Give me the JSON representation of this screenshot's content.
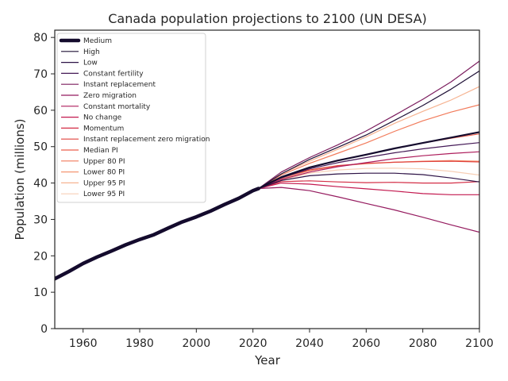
{
  "chart_data": {
    "type": "line",
    "title": "Canada population projections to 2100 (UN DESA)",
    "xlabel": "Year",
    "ylabel": "Population (millions)",
    "xlim": [
      1950,
      2100
    ],
    "ylim": [
      0,
      82
    ],
    "xticks": [
      1960,
      1980,
      2000,
      2020,
      2040,
      2060,
      2080,
      2100
    ],
    "yticks": [
      0,
      10,
      20,
      30,
      40,
      50,
      60,
      70,
      80
    ],
    "grid": false,
    "legend_position": "top-left",
    "historical": {
      "name": "Medium",
      "x": [
        1950,
        1955,
        1960,
        1965,
        1970,
        1975,
        1980,
        1985,
        1990,
        1995,
        2000,
        2005,
        2010,
        2015,
        2020,
        2022
      ],
      "y": [
        13.7,
        15.7,
        17.9,
        19.7,
        21.3,
        23.0,
        24.5,
        25.8,
        27.6,
        29.3,
        30.7,
        32.3,
        34.1,
        35.8,
        37.9,
        38.5
      ]
    },
    "series": [
      {
        "name": "Medium",
        "color": "#140b2d",
        "width": 2.2,
        "x": [
          2022,
          2030,
          2040,
          2050,
          2060,
          2070,
          2080,
          2090,
          2100
        ],
        "y": [
          38.5,
          41.6,
          44.3,
          46.2,
          47.8,
          49.5,
          51.0,
          52.5,
          54.0
        ]
      },
      {
        "name": "High",
        "color": "#1f1137",
        "width": 1.2,
        "x": [
          2022,
          2030,
          2040,
          2050,
          2060,
          2070,
          2080,
          2090,
          2100
        ],
        "y": [
          38.5,
          42.5,
          46.5,
          49.8,
          53.2,
          57.2,
          61.3,
          65.8,
          70.8
        ]
      },
      {
        "name": "Low",
        "color": "#2e1447",
        "width": 1.2,
        "x": [
          2022,
          2030,
          2040,
          2050,
          2060,
          2070,
          2080,
          2090,
          2100
        ],
        "y": [
          38.5,
          40.7,
          42.0,
          42.5,
          42.7,
          42.7,
          42.3,
          41.4,
          40.3
        ]
      },
      {
        "name": "Constant fertility",
        "color": "#451a57",
        "width": 1.2,
        "x": [
          2022,
          2030,
          2040,
          2050,
          2060,
          2070,
          2080,
          2090,
          2100
        ],
        "y": [
          38.5,
          41.4,
          43.9,
          45.6,
          47.0,
          48.3,
          49.4,
          50.3,
          51.1
        ]
      },
      {
        "name": "Instant replacement",
        "color": "#7b1d5e",
        "width": 1.2,
        "x": [
          2022,
          2030,
          2040,
          2050,
          2060,
          2070,
          2080,
          2090,
          2100
        ],
        "y": [
          38.5,
          43.0,
          47.0,
          50.5,
          54.3,
          58.6,
          63.0,
          67.8,
          73.5
        ]
      },
      {
        "name": "Zero migration",
        "color": "#951b5f",
        "width": 1.2,
        "x": [
          2022,
          2030,
          2040,
          2050,
          2060,
          2070,
          2080,
          2090,
          2100
        ],
        "y": [
          38.5,
          38.8,
          37.9,
          36.2,
          34.4,
          32.6,
          30.6,
          28.5,
          26.5
        ]
      },
      {
        "name": "Constant mortality",
        "color": "#ad1c5b",
        "width": 1.2,
        "x": [
          2022,
          2030,
          2040,
          2050,
          2060,
          2070,
          2080,
          2090,
          2100
        ],
        "y": [
          38.5,
          41.0,
          43.0,
          44.5,
          45.6,
          46.7,
          47.5,
          48.1,
          48.6
        ]
      },
      {
        "name": "No change",
        "color": "#c3194f",
        "width": 1.2,
        "x": [
          2022,
          2030,
          2040,
          2050,
          2060,
          2070,
          2080,
          2090,
          2100
        ],
        "y": [
          38.5,
          40.0,
          39.7,
          39.0,
          38.4,
          37.8,
          37.1,
          36.8,
          36.8
        ]
      },
      {
        "name": "Momentum",
        "color": "#d42e46",
        "width": 1.2,
        "x": [
          2022,
          2030,
          2040,
          2050,
          2060,
          2070,
          2080,
          2090,
          2100
        ],
        "y": [
          38.5,
          40.4,
          40.6,
          40.3,
          40.1,
          40.2,
          40.0,
          40.0,
          40.4
        ]
      },
      {
        "name": "Instant replacement zero migration",
        "color": "#e0433e",
        "width": 1.2,
        "x": [
          2022,
          2030,
          2040,
          2050,
          2060,
          2070,
          2080,
          2090,
          2100
        ],
        "y": [
          38.5,
          41.5,
          43.6,
          44.8,
          45.4,
          45.7,
          45.9,
          46.0,
          45.8
        ]
      },
      {
        "name": "Median PI",
        "color": "#ec5f4c",
        "width": 1.2,
        "x": [
          2022,
          2030,
          2040,
          2050,
          2060,
          2070,
          2080,
          2090,
          2100
        ],
        "y": [
          38.5,
          41.6,
          44.3,
          46.2,
          47.8,
          49.5,
          51.0,
          52.3,
          53.5
        ]
      },
      {
        "name": "Upper 80 PI",
        "color": "#f27b5b",
        "width": 1.2,
        "x": [
          2022,
          2030,
          2040,
          2050,
          2060,
          2070,
          2080,
          2090,
          2100
        ],
        "y": [
          38.5,
          42.2,
          45.4,
          48.2,
          51.0,
          54.2,
          57.1,
          59.5,
          61.5
        ]
      },
      {
        "name": "Lower 80 PI",
        "color": "#f59773",
        "width": 1.2,
        "x": [
          2022,
          2030,
          2040,
          2050,
          2060,
          2070,
          2080,
          2090,
          2100
        ],
        "y": [
          38.5,
          41.2,
          43.4,
          44.7,
          45.3,
          45.7,
          46.0,
          46.2,
          46.0
        ]
      },
      {
        "name": "Upper 95 PI",
        "color": "#f6b391",
        "width": 1.2,
        "x": [
          2022,
          2030,
          2040,
          2050,
          2060,
          2070,
          2080,
          2090,
          2100
        ],
        "y": [
          38.5,
          42.5,
          46.0,
          49.3,
          52.7,
          56.4,
          59.7,
          62.8,
          66.5
        ]
      },
      {
        "name": "Lower 95 PI",
        "color": "#f7cfb6",
        "width": 1.2,
        "x": [
          2022,
          2030,
          2040,
          2050,
          2060,
          2070,
          2080,
          2090,
          2100
        ],
        "y": [
          38.5,
          40.8,
          42.7,
          43.6,
          44.0,
          44.1,
          43.9,
          43.2,
          42.2
        ]
      }
    ],
    "legend_entries": [
      {
        "name": "Medium",
        "color": "#140b2d",
        "width": 4.5
      },
      {
        "name": "High",
        "color": "#1f1137",
        "width": 1.2
      },
      {
        "name": "Low",
        "color": "#2e1447",
        "width": 1.2
      },
      {
        "name": "Constant fertility",
        "color": "#451a57",
        "width": 1.2
      },
      {
        "name": "Instant replacement",
        "color": "#7b1d5e",
        "width": 1.2
      },
      {
        "name": "Zero migration",
        "color": "#951b5f",
        "width": 1.2
      },
      {
        "name": "Constant mortality",
        "color": "#ad1c5b",
        "width": 1.2
      },
      {
        "name": "No change",
        "color": "#c3194f",
        "width": 1.2
      },
      {
        "name": "Momentum",
        "color": "#d42e46",
        "width": 1.2
      },
      {
        "name": "Instant replacement zero migration",
        "color": "#e0433e",
        "width": 1.2
      },
      {
        "name": "Median PI",
        "color": "#ec5f4c",
        "width": 1.2
      },
      {
        "name": "Upper 80 PI",
        "color": "#f27b5b",
        "width": 1.2
      },
      {
        "name": "Lower 80 PI",
        "color": "#f59773",
        "width": 1.2
      },
      {
        "name": "Upper 95 PI",
        "color": "#f6b391",
        "width": 1.2
      },
      {
        "name": "Lower 95 PI",
        "color": "#f7cfb6",
        "width": 1.2
      }
    ]
  }
}
